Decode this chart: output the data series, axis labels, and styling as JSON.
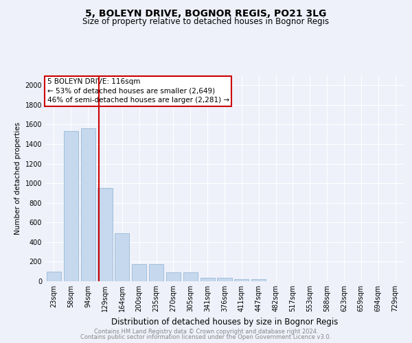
{
  "title1": "5, BOLEYN DRIVE, BOGNOR REGIS, PO21 3LG",
  "title2": "Size of property relative to detached houses in Bognor Regis",
  "xlabel": "Distribution of detached houses by size in Bognor Regis",
  "ylabel": "Number of detached properties",
  "categories": [
    "23sqm",
    "58sqm",
    "94sqm",
    "129sqm",
    "164sqm",
    "200sqm",
    "235sqm",
    "270sqm",
    "305sqm",
    "341sqm",
    "376sqm",
    "411sqm",
    "447sqm",
    "482sqm",
    "517sqm",
    "553sqm",
    "588sqm",
    "623sqm",
    "659sqm",
    "694sqm",
    "729sqm"
  ],
  "values": [
    100,
    1530,
    1560,
    950,
    490,
    175,
    175,
    90,
    90,
    35,
    35,
    20,
    20,
    0,
    0,
    0,
    0,
    0,
    0,
    0,
    0
  ],
  "bar_color": "#c5d8ed",
  "bar_edge_color": "#8ab0d0",
  "vline_color": "#cc0000",
  "vline_pos": 2.63,
  "ylim": [
    0,
    2100
  ],
  "yticks": [
    0,
    200,
    400,
    600,
    800,
    1000,
    1200,
    1400,
    1600,
    1800,
    2000
  ],
  "annotation_title": "5 BOLEYN DRIVE: 116sqm",
  "annotation_line1": "← 53% of detached houses are smaller (2,649)",
  "annotation_line2": "46% of semi-detached houses are larger (2,281) →",
  "annotation_box_edgecolor": "#cc0000",
  "footer1": "Contains HM Land Registry data © Crown copyright and database right 2024.",
  "footer2": "Contains public sector information licensed under the Open Government Licence v3.0.",
  "bg_color": "#eef1fa",
  "grid_color": "#ffffff",
  "title1_fontsize": 10,
  "title2_fontsize": 8.5,
  "ylabel_fontsize": 7.5,
  "xlabel_fontsize": 8.5,
  "tick_fontsize": 7,
  "footer_fontsize": 6
}
